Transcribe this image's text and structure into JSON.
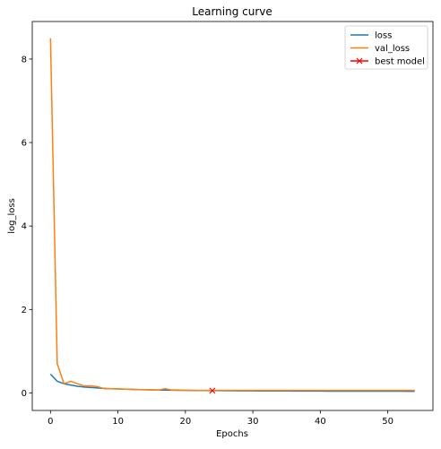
{
  "chart_data": {
    "type": "line",
    "title": "Learning curve",
    "xlabel": "Epochs",
    "ylabel": "log_loss",
    "xlim": [
      -2.7,
      56.7
    ],
    "ylim": [
      -0.42,
      8.9
    ],
    "x_ticks": [
      0,
      10,
      20,
      30,
      40,
      50
    ],
    "y_ticks": [
      0,
      2,
      4,
      6,
      8
    ],
    "grid": false,
    "legend": "top-right",
    "series": [
      {
        "name": "loss",
        "color": "#1f77b4",
        "x": [
          0,
          1,
          2,
          3,
          4,
          5,
          6,
          7,
          8,
          9,
          10,
          11,
          12,
          13,
          14,
          15,
          16,
          17,
          18,
          19,
          20,
          21,
          22,
          23,
          24,
          25,
          26,
          27,
          28,
          29,
          30,
          31,
          32,
          33,
          34,
          35,
          36,
          37,
          38,
          39,
          40,
          41,
          42,
          43,
          44,
          45,
          46,
          47,
          48,
          49,
          50,
          51,
          52,
          53,
          54
        ],
        "values": [
          0.45,
          0.28,
          0.22,
          0.19,
          0.16,
          0.14,
          0.13,
          0.12,
          0.11,
          0.1,
          0.095,
          0.09,
          0.085,
          0.08,
          0.077,
          0.074,
          0.071,
          0.068,
          0.066,
          0.064,
          0.062,
          0.06,
          0.058,
          0.057,
          0.055,
          0.054,
          0.053,
          0.052,
          0.051,
          0.05,
          0.049,
          0.048,
          0.047,
          0.047,
          0.046,
          0.046,
          0.045,
          0.045,
          0.044,
          0.044,
          0.044,
          0.043,
          0.043,
          0.043,
          0.042,
          0.042,
          0.042,
          0.042,
          0.041,
          0.041,
          0.041,
          0.041,
          0.041,
          0.04,
          0.04
        ]
      },
      {
        "name": "val_loss",
        "color": "#ff7f0e",
        "x": [
          0,
          1,
          2,
          3,
          4,
          5,
          6,
          7,
          8,
          9,
          10,
          11,
          12,
          13,
          14,
          15,
          16,
          17,
          18,
          19,
          20,
          21,
          22,
          23,
          24,
          25,
          26,
          27,
          28,
          29,
          30,
          31,
          32,
          33,
          34,
          35,
          36,
          37,
          38,
          39,
          40,
          41,
          42,
          43,
          44,
          45,
          46,
          47,
          48,
          49,
          50,
          51,
          52,
          53,
          54
        ],
        "values": [
          8.5,
          0.7,
          0.22,
          0.28,
          0.22,
          0.17,
          0.17,
          0.15,
          0.1,
          0.1,
          0.1,
          0.09,
          0.09,
          0.08,
          0.08,
          0.07,
          0.07,
          0.1,
          0.07,
          0.07,
          0.06,
          0.06,
          0.06,
          0.06,
          0.06,
          0.06,
          0.06,
          0.06,
          0.06,
          0.06,
          0.06,
          0.06,
          0.06,
          0.06,
          0.06,
          0.06,
          0.06,
          0.06,
          0.06,
          0.06,
          0.06,
          0.06,
          0.06,
          0.06,
          0.06,
          0.06,
          0.06,
          0.06,
          0.06,
          0.06,
          0.06,
          0.06,
          0.06,
          0.06,
          0.06
        ]
      },
      {
        "name": "best model",
        "color": "#ff0000",
        "marker": "x",
        "x": [
          24
        ],
        "values": [
          0.055
        ]
      }
    ]
  }
}
